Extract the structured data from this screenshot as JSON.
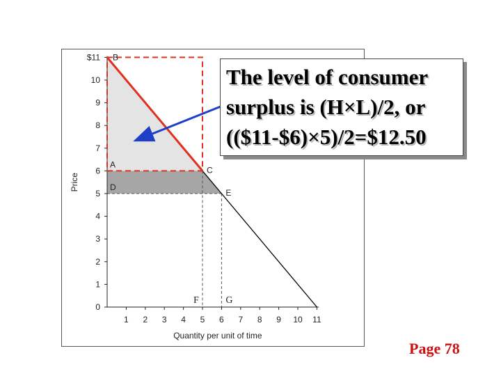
{
  "callout": {
    "lines": [
      "The level of consumer",
      "surplus is (H×L)/2, or",
      "(($11-$6)×5)/2=$12.50"
    ]
  },
  "page_label": "Page 78",
  "chart_data": {
    "type": "line",
    "xlabel": "Quantity per unit of time",
    "ylabel": "Price",
    "xlim": [
      0,
      11
    ],
    "ylim": [
      0,
      11
    ],
    "x_ticks": [
      "1",
      "2",
      "3",
      "4",
      "5",
      "6",
      "7",
      "8",
      "9",
      "10",
      "11"
    ],
    "y_ticks": [
      "0",
      "1",
      "2",
      "3",
      "4",
      "5",
      "6",
      "7",
      "8",
      "9",
      "10",
      "$11"
    ],
    "series": [
      {
        "points": [
          [
            0,
            11
          ],
          [
            5,
            6
          ],
          [
            6,
            5
          ],
          [
            11,
            0
          ]
        ]
      }
    ],
    "shaded_regions": [
      {
        "points": [
          [
            0,
            11
          ],
          [
            0,
            6
          ],
          [
            5,
            6
          ]
        ],
        "color": "#e4e4e4"
      },
      {
        "points": [
          [
            0,
            6
          ],
          [
            5,
            6
          ],
          [
            6,
            5
          ],
          [
            0,
            5
          ]
        ],
        "color": "#a6a6a6"
      }
    ],
    "highlight_rectangle": {
      "x": [
        0,
        5
      ],
      "y": [
        6,
        11
      ],
      "color": "#e03020"
    },
    "highlight_segment": {
      "from": [
        0,
        11
      ],
      "to": [
        5,
        6
      ],
      "color": "#e03020"
    },
    "point_labels": [
      {
        "text": "B",
        "x": 0,
        "y": 11
      },
      {
        "text": "A",
        "x": 0,
        "y": 6
      },
      {
        "text": "C",
        "x": 5,
        "y": 6
      },
      {
        "text": "D",
        "x": 0,
        "y": 5
      },
      {
        "text": "E",
        "x": 6,
        "y": 5
      },
      {
        "text": "F",
        "x": 5,
        "y": 0
      },
      {
        "text": "G",
        "x": 6,
        "y": 0
      }
    ],
    "arrow": {
      "color": "#1f3fc8"
    },
    "colors": {
      "curve": "#000000",
      "highlight": "#e03020",
      "arrow": "#1f3fc8",
      "consumer_surplus": "#e4e4e4",
      "extra_surplus": "#a6a6a6"
    }
  }
}
